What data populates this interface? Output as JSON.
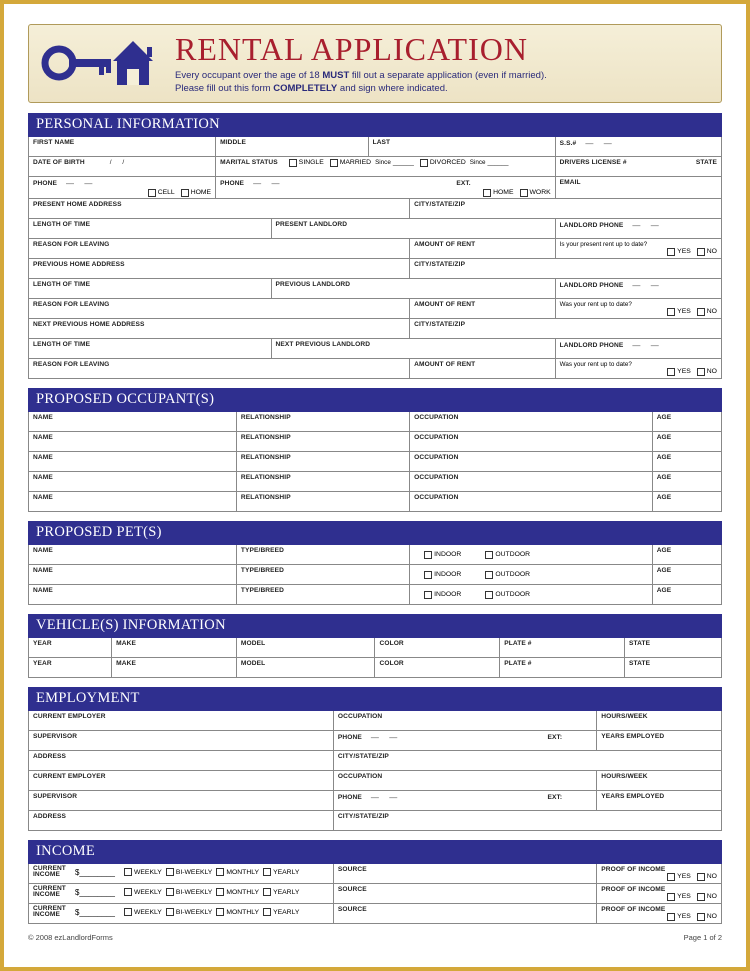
{
  "colors": {
    "outer_border": "#d4a83a",
    "section_header_bg": "#2f2f8f",
    "section_header_fg": "#ffffff",
    "title_color": "#a81f2e",
    "header_bg_top": "#f5efd8",
    "header_bg_bot": "#ede3c5",
    "cell_border": "#888888",
    "text": "#222222"
  },
  "header": {
    "title": "RENTAL APPLICATION",
    "subtitle_line1_a": "Every occupant over the age of 18 ",
    "subtitle_line1_b": "MUST",
    "subtitle_line1_c": " fill out a separate application (even if married).",
    "subtitle_line2_a": "Please fill out this form ",
    "subtitle_line2_b": "COMPLETELY",
    "subtitle_line2_c": " and sign where indicated."
  },
  "sections": {
    "personal": "PERSONAL INFORMATION",
    "occupants": "PROPOSED OCCUPANT(S)",
    "pets": "PROPOSED PET(S)",
    "vehicles": "VEHICLE(S) INFORMATION",
    "employment": "EMPLOYMENT",
    "income": "INCOME"
  },
  "labels": {
    "first_name": "FIRST NAME",
    "middle": "MIDDLE",
    "last": "LAST",
    "ssn": "S.S.#",
    "dob": "DATE OF BIRTH",
    "marital": "MARITAL STATUS",
    "drivers": "DRIVERS LICENSE #",
    "state": "STATE",
    "phone": "PHONE",
    "ext": "EXT.",
    "email": "EMAIL",
    "present_addr": "PRESENT HOME ADDRESS",
    "city_state_zip": "CITY/STATE/ZIP",
    "length_time": "LENGTH OF TIME",
    "present_landlord": "PRESENT LANDLORD",
    "landlord_phone": "LANDLORD PHONE",
    "reason_leaving": "REASON FOR LEAVING",
    "amount_rent": "AMOUNT OF RENT",
    "rent_uptodate_present": "Is your present rent up to date?",
    "rent_uptodate_past": "Was your rent up to date?",
    "previous_addr": "PREVIOUS HOME ADDRESS",
    "previous_landlord": "PREVIOUS LANDLORD",
    "next_previous_addr": "NEXT PREVIOUS HOME ADDRESS",
    "next_previous_landlord": "NEXT PREVIOUS LANDLORD",
    "name": "NAME",
    "relationship": "RELATIONSHIP",
    "occupation": "OCCUPATION",
    "age": "AGE",
    "type_breed": "TYPE/BREED",
    "indoor": "INDOOR",
    "outdoor": "OUTDOOR",
    "year": "YEAR",
    "make": "MAKE",
    "model": "MODEL",
    "color": "COLOR",
    "plate": "PLATE #",
    "current_employer": "CURRENT EMPLOYER",
    "hours_week": "HOURS/WEEK",
    "supervisor": "SUPERVISOR",
    "years_employed": "YEARS EMPLOYED",
    "address": "ADDRESS",
    "current_income": "CURRENT\nINCOME",
    "source": "SOURCE",
    "proof_income": "PROOF OF INCOME",
    "single": "SINGLE",
    "married": "MARRIED",
    "divorced": "DIVORCED",
    "since": "Since",
    "cell": "CELL",
    "home": "HOME",
    "work": "WORK",
    "yes": "YES",
    "no": "NO",
    "weekly": "WEEKLY",
    "biweekly": "BI-WEEKLY",
    "monthly": "MONTHLY",
    "yearly": "YEARLY",
    "dollar": "$"
  },
  "footer": {
    "copyright": "© 2008 ezLandlordForms",
    "page": "Page 1 of 2"
  }
}
